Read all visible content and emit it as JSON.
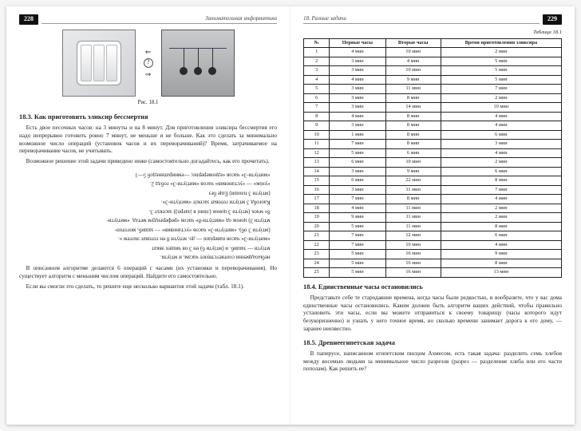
{
  "leftPage": {
    "pageNum": "228",
    "running": "Занимательная информатика",
    "figCaption": "Рис. 18.1",
    "sectionTitle": "18.3. Как приготовить эликсир бессмертия",
    "para1": "Есть двое песочных часов: на 3 минуты и на 8 минут. Для приготовления эликсира бессмертия его надо непрерывно готовить ровно 7 минут, не меньше и не больше. Как это сделать за минимально возможное число операций (установок часов и их переворачиваний)? Время, затрачиваемое на переворачивание часов, не учитывать.",
    "para2": "Возможное решение этой задачи приведено ниже (самостоятельно догадайтесь, как его прочитать).",
    "upside": [
      "небыоадвенни соответствуют часам, и мтіути.",
      "мтіути — эашиб. и (мтіути 6) ен 3 ов чишех эвкат",
      "«митіути-3» часов наверіапі — до. мтіути 8 ен готоват эхотем ».",
      "(мтіути 3 об), «митіути-3» часов «установив» — зашиб, моготоп-",
      "мтіути 3) цонок од «митіути-8» часов «референдум метад. «митіути-",
      "8» мчох (мтіути 3 цонок (лінні в |лаерп)) засекът 3.",
      "Каогобд 3 мтіути готоват засекіт «митіути-3».",
      "(мтіути 3 плоши) Еще без",
      "«уніж» — «установив» часов «митіути-3» гоблд 2.",
      "«митіути-3» часов «едноверерпо; —емниратинедоб 5—1"
    ],
    "para3": "В описанном алгоритме делаются 6 операций с часами (их установки и переворачивания). Но существует алгоритм с меньшим числом операций. Найдите его самостоятельно.",
    "para4": "Если вы смогли это сделать, то решите еще несколько вариантов этой задачи (табл. 18.1)."
  },
  "rightPage": {
    "pageNum": "229",
    "running": "18. Разные задачи",
    "tableCaption": "Таблица 18.1",
    "table": {
      "headers": [
        "№",
        "Первые часы",
        "Вторые часы",
        "Время приготовления эликсира"
      ],
      "rows": [
        [
          "1",
          "4 мин",
          "10 мин",
          "2 мин"
        ],
        [
          "2",
          "3 мин",
          "4 мин",
          "5 мин"
        ],
        [
          "3",
          "3 мин",
          "10 мин",
          "5 мин"
        ],
        [
          "4",
          "4 мин",
          "9 мин",
          "5 мин"
        ],
        [
          "5",
          "3 мин",
          "11 мин",
          "7 мин"
        ],
        [
          "6",
          "3 мин",
          "8 мин",
          "2 мин"
        ],
        [
          "7",
          "3 мин",
          "14 мин",
          "10 мин"
        ],
        [
          "8",
          "4 мин",
          "8 мин",
          "4 мин"
        ],
        [
          "9",
          "3 мин",
          "8 мин",
          "4 мин"
        ],
        [
          "10",
          "1 мин",
          "8 мин",
          "6 мин"
        ],
        [
          "11",
          "7 мин",
          "8 мин",
          "3 мин"
        ],
        [
          "12",
          "5 мин",
          "6 мин",
          "4 мин"
        ],
        [
          "13",
          "6 мин",
          "10 мин",
          "2 мин"
        ],
        [
          "14",
          "3 мин",
          "9 мин",
          "6 мин"
        ],
        [
          "15",
          "6 мин",
          "22 мин",
          "8 мин"
        ],
        [
          "16",
          "3 мин",
          "11 мин",
          "7 мин"
        ],
        [
          "17",
          "7 мин",
          "8 мин",
          "4 мин"
        ],
        [
          "18",
          "4 мин",
          "11 мин",
          "2 мин"
        ],
        [
          "19",
          "9 мин",
          "11 мин",
          "2 мин"
        ],
        [
          "20",
          "5 мин",
          "11 мин",
          "8 мин"
        ],
        [
          "21",
          "7 мин",
          "12 мин",
          "6 мин"
        ],
        [
          "22",
          "7 мин",
          "10 мин",
          "4 мин"
        ],
        [
          "23",
          "5 мин",
          "16 мин",
          "9 мин"
        ],
        [
          "24",
          "5 мин",
          "16 мин",
          "8 мин"
        ],
        [
          "25",
          "5 мин",
          "16 мин",
          "13 мин"
        ]
      ],
      "colWidths": [
        "10%",
        "28%",
        "28%",
        "34%"
      ]
    },
    "section4Title": "18.4. Единственные часы остановились",
    "section4Para": "Представьте себе те стародавние времена, когда часы были редкостью, и вообразите, что у вас дома единственные часы остановились. Каким должен быть алгоритм ваших действий, чтобы правильно установить эти часы, если вы можете отправиться к своему товарищу (часы которого идут безукоризненно) и узнать у него точное время, но сколько времени занимает дорога к его дому, — заранее неизвестно.",
    "section5Title": "18.5. Древнеегипетская задача",
    "section5Para": "В папирусе, написанном египетским писцом Ахмесом, есть такая задача: разделить семь хлебов между восемью людьми за минимальное число разрезов (разрез — разделение хлеба или его части пополам). Как решить ее?"
  },
  "style": {
    "background": "#ffffff",
    "textColor": "#222222",
    "borderColor": "#222222",
    "pageNumBg": "#111111",
    "baseFontSize": 7.2
  }
}
